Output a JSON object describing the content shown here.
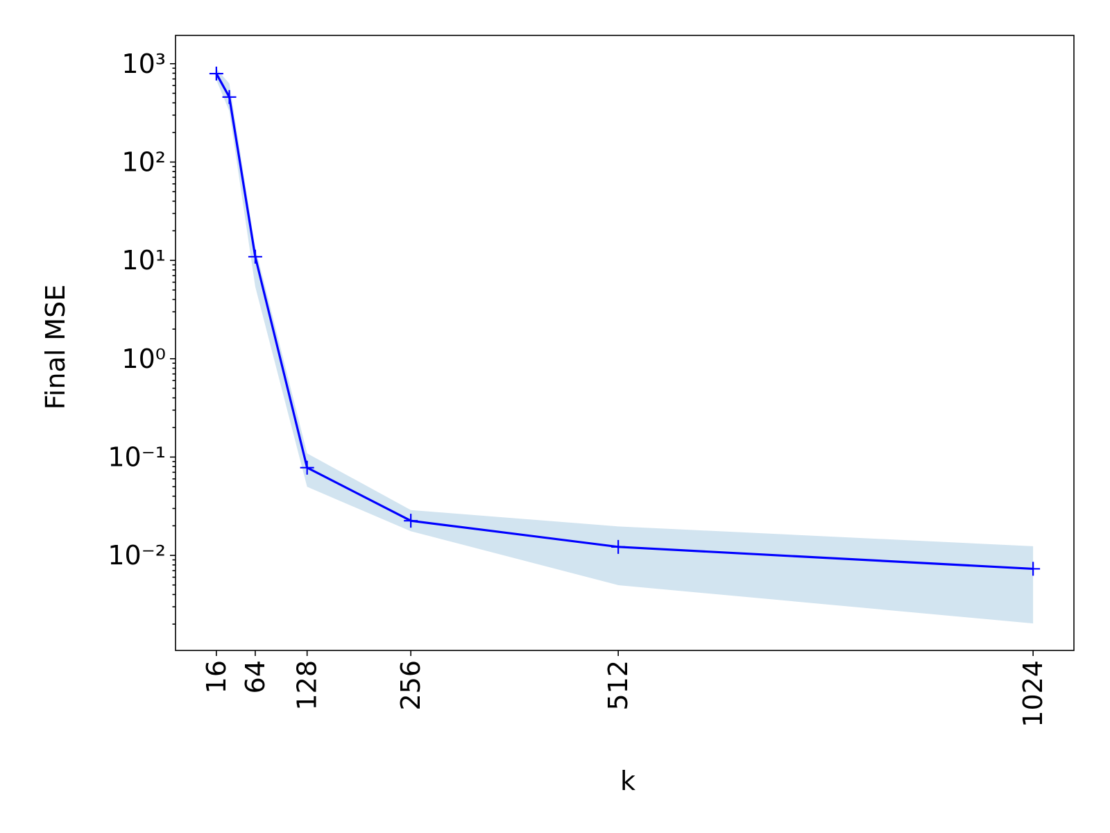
{
  "chart_data": {
    "type": "line",
    "x_label": "k",
    "y_label": "Final MSE",
    "x": [
      16,
      32,
      64,
      128,
      256,
      512,
      1024
    ],
    "line": {
      "color": "#0000ff",
      "marker": "+",
      "values": [
        793,
        458,
        10.9,
        0.078,
        0.0225,
        0.0122,
        0.0073
      ]
    },
    "band": {
      "color": "#1f77b4",
      "opacity": 0.2,
      "upper": [
        890,
        630,
        13.5,
        0.109,
        0.0289,
        0.0197,
        0.0124
      ],
      "lower": [
        682,
        329,
        5.4,
        0.0498,
        0.0176,
        0.00498,
        0.00203
      ]
    },
    "xlim": [
      -34.4,
      1074.4
    ],
    "xticks": [
      16,
      64,
      128,
      256,
      512,
      1024
    ],
    "y_scale": "log",
    "ylim": [
      0.00108,
      1940
    ],
    "yticks": [
      {
        "value": 0.01,
        "label": "10⁻²"
      },
      {
        "value": 0.1,
        "label": "10⁻¹"
      },
      {
        "value": 1,
        "label": "10⁰"
      },
      {
        "value": 10,
        "label": "10¹"
      },
      {
        "value": 100,
        "label": "10²"
      },
      {
        "value": 1000,
        "label": "10³"
      }
    ],
    "yminorticks": [
      0.002,
      0.003,
      0.004,
      0.005,
      0.006,
      0.007,
      0.008,
      0.009,
      0.02,
      0.03,
      0.04,
      0.05,
      0.06,
      0.07,
      0.08,
      0.09,
      0.2,
      0.3,
      0.4,
      0.5,
      0.6,
      0.7,
      0.8,
      0.9,
      2,
      3,
      4,
      5,
      6,
      7,
      8,
      9,
      20,
      30,
      40,
      50,
      60,
      70,
      80,
      90,
      200,
      300,
      400,
      500,
      600,
      700,
      800,
      900
    ],
    "grid": false
  }
}
